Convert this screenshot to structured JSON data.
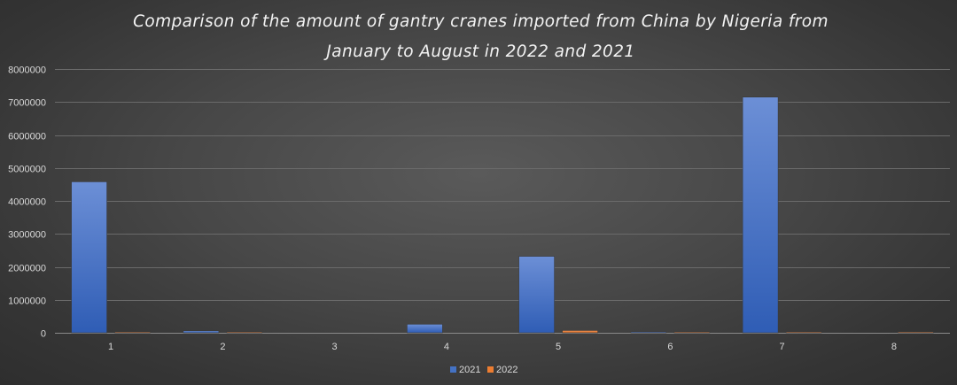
{
  "chart_data": {
    "type": "bar",
    "title_lines": [
      "Comparison of the amount of gantry cranes imported from China by Nigeria from",
      "January to August in 2022 and 2021"
    ],
    "categories": [
      "1",
      "2",
      "3",
      "4",
      "5",
      "6",
      "7",
      "8"
    ],
    "series": [
      {
        "name": "2021",
        "color": "#4472c4",
        "values": [
          4580000,
          60000,
          0,
          260000,
          2320000,
          30000,
          7150000,
          0
        ]
      },
      {
        "name": "2022",
        "color": "#ed7d31",
        "values": [
          15000,
          10000,
          0,
          0,
          70000,
          5000,
          15000,
          15000
        ]
      }
    ],
    "yticks": [
      0,
      1000000,
      2000000,
      3000000,
      4000000,
      5000000,
      6000000,
      7000000,
      8000000
    ],
    "ylim": [
      0,
      8000000
    ],
    "grid": true,
    "legend_position": "bottom"
  }
}
